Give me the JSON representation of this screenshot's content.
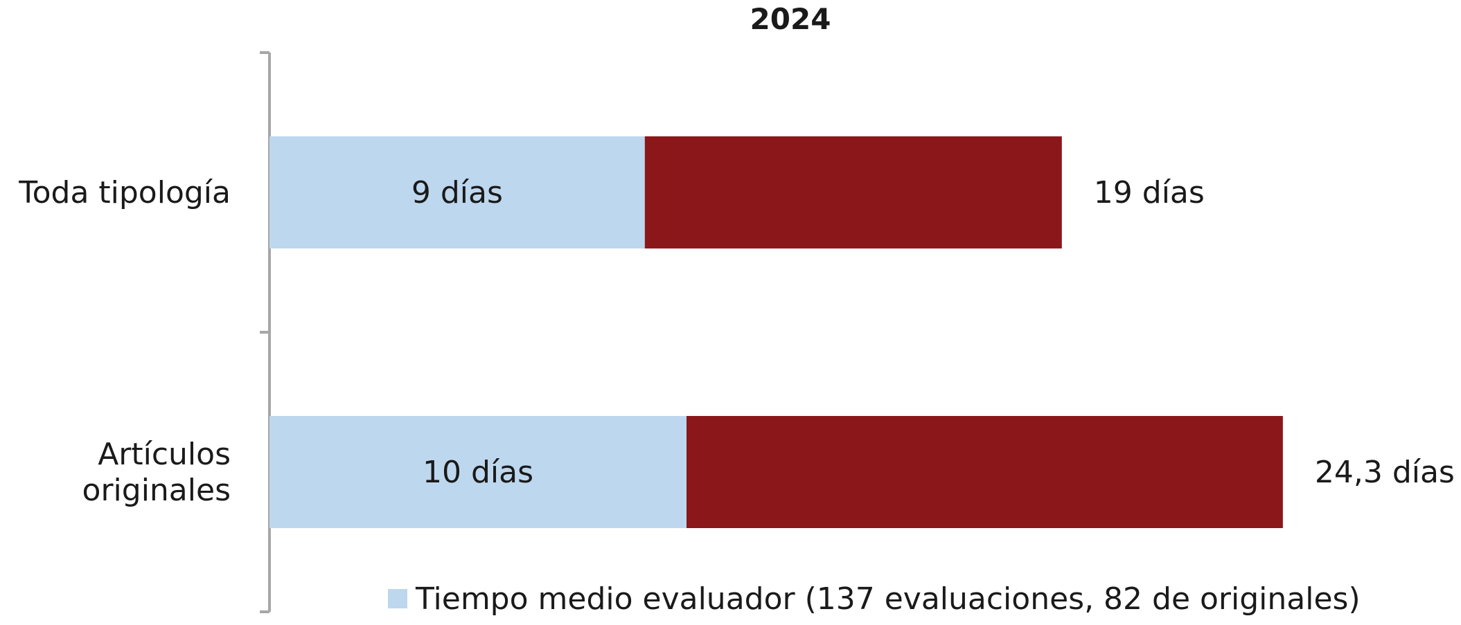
{
  "chart_data": {
    "type": "bar",
    "orientation": "horizontal",
    "stacked": true,
    "title": "2024",
    "categories": [
      "Toda tipología",
      "Artículos originales"
    ],
    "series": [
      {
        "name": "Tiempo medio evaluador (137 evaluaciones, 82 de originales)",
        "values": [
          9,
          10
        ],
        "color": "#BDD7EE",
        "labels": [
          "9 días",
          "10 días"
        ]
      },
      {
        "values": [
          10,
          14.3
        ],
        "color": "#8B171B"
      }
    ],
    "totals": [
      19,
      24.3
    ],
    "total_labels": [
      "19 días",
      "24,3 días"
    ],
    "xlim": [
      0,
      30
    ],
    "axis_color": "#A6A6A6",
    "grid": false,
    "legend_position": "bottom"
  }
}
